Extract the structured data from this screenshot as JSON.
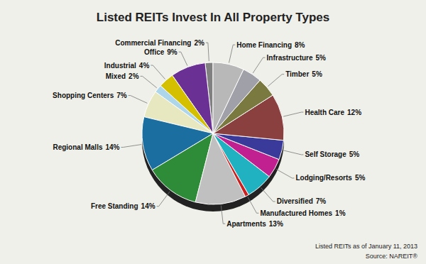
{
  "chart_data": {
    "type": "pie",
    "title": "Listed REITs Invest In All Property Types",
    "categories": [
      "Commercial Financing",
      "Office",
      "Industrial",
      "Mixed",
      "Shopping Centers",
      "Regional Malls",
      "Free Standing",
      "Apartments",
      "Manufactured Homes",
      "Diversified",
      "Lodging/Resorts",
      "Self Storage",
      "Health Care",
      "Timber",
      "Infrastructure",
      "Home Financing"
    ],
    "values": [
      2,
      9,
      4,
      2,
      7,
      14,
      14,
      13,
      1,
      7,
      5,
      5,
      12,
      5,
      5,
      8
    ],
    "value_labels": [
      "2%",
      "9%",
      "4%",
      "2%",
      "7%",
      "14%",
      "14%",
      "13%",
      "1%",
      "7%",
      "5%",
      "5%",
      "12%",
      "5%",
      "5%",
      "8%"
    ],
    "colors": [
      "#808080",
      "#6a3093",
      "#d4c000",
      "#aed6ea",
      "#e8e8c0",
      "#1a6ea0",
      "#2e8b37",
      "#c0c0c0",
      "#cc2222",
      "#20b2c0",
      "#c02090",
      "#3a3a9a",
      "#8b4040",
      "#7a7a40",
      "#a0a0a8",
      "#b8b8b8"
    ],
    "data_labels": true,
    "annotations": [
      "Listed REITs as of January 11, 2013",
      "Source: NAREIT®"
    ]
  }
}
